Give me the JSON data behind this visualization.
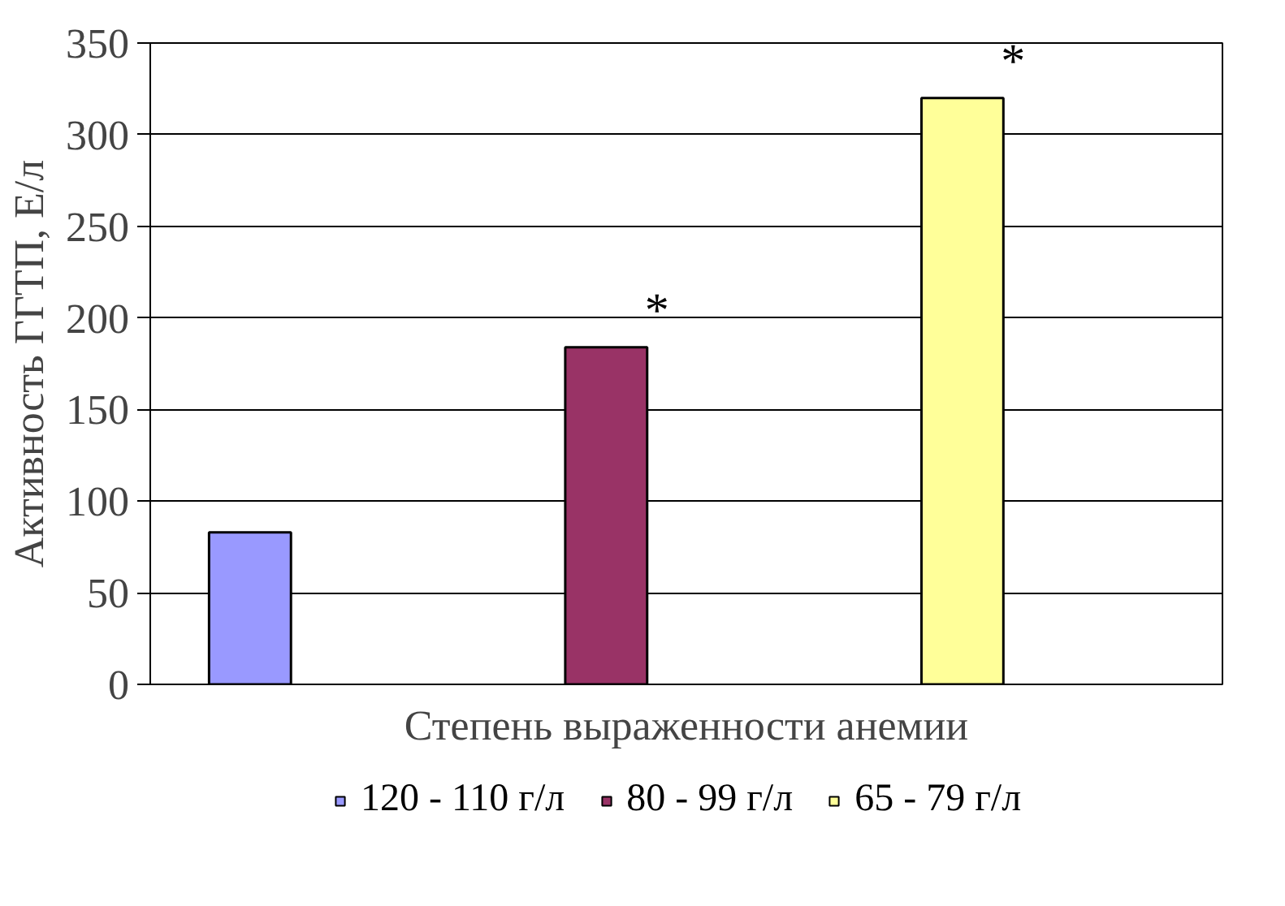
{
  "chart_data": {
    "type": "bar",
    "xlabel": "Степень выраженности анемии",
    "ylabel": "Активность ГГТП, Е/л",
    "categories": [
      null,
      null,
      null
    ],
    "series": [
      {
        "name": "120 - 110 г/л",
        "color": "#9999ff",
        "values": [
          83,
          null,
          null
        ]
      },
      {
        "name": "80 - 99 г/л",
        "color": "#993366",
        "values": [
          null,
          184,
          null
        ]
      },
      {
        "name": "65 - 79 г/л",
        "color": "#ffff99",
        "values": [
          null,
          null,
          320
        ]
      }
    ],
    "annotations": [
      "*",
      "*"
    ],
    "ylim": [
      0,
      350
    ],
    "yticks": [
      0,
      50,
      100,
      150,
      200,
      250,
      300,
      350
    ],
    "grid": "y",
    "legend": "bottom"
  }
}
